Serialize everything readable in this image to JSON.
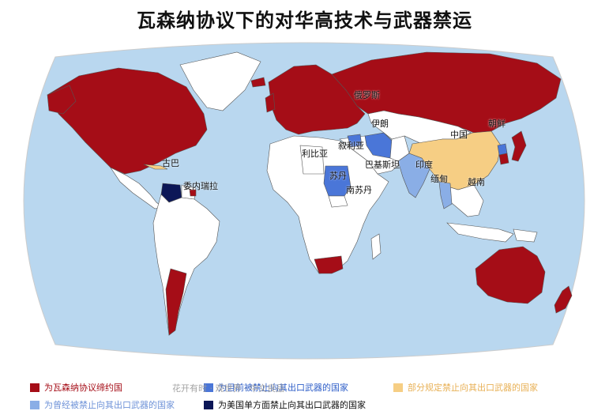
{
  "title": "瓦森纳协议下的对华高技术与武器禁运",
  "colors": {
    "ocean": "#b9d7ef",
    "land": "#ffffff",
    "border": "#555555",
    "member": "#a50d17",
    "current_ban": "#4a76d8",
    "past_ban": "#8aaee6",
    "us_ban": "#0c1757",
    "china_partial": "#f6ce84"
  },
  "labels": {
    "russia": "俄罗斯",
    "north_korea": "朝鲜",
    "china": "中国",
    "iran": "伊朗",
    "syria": "叙利亚",
    "libya": "利比亚",
    "pakistan": "巴基斯坦",
    "india": "印度",
    "myanmar": "缅甸",
    "vietnam": "越南",
    "sudan": "苏丹",
    "south_sudan": "南苏丹",
    "cuba": "古巴",
    "venezuela": "委内瑞拉"
  },
  "legend": {
    "member": "为瓦森纳协议缔约国",
    "current_ban": "为目前被禁止向其出口武器的国家",
    "partial": "部分规定禁止向其出口武器的国家",
    "past_ban": "为曾经被禁止向其出口武器的国家",
    "us_ban": "为美国单方面禁止向其出口武器的国家"
  },
  "watermark": "花开有时 · 观世界 · 中文良品"
}
